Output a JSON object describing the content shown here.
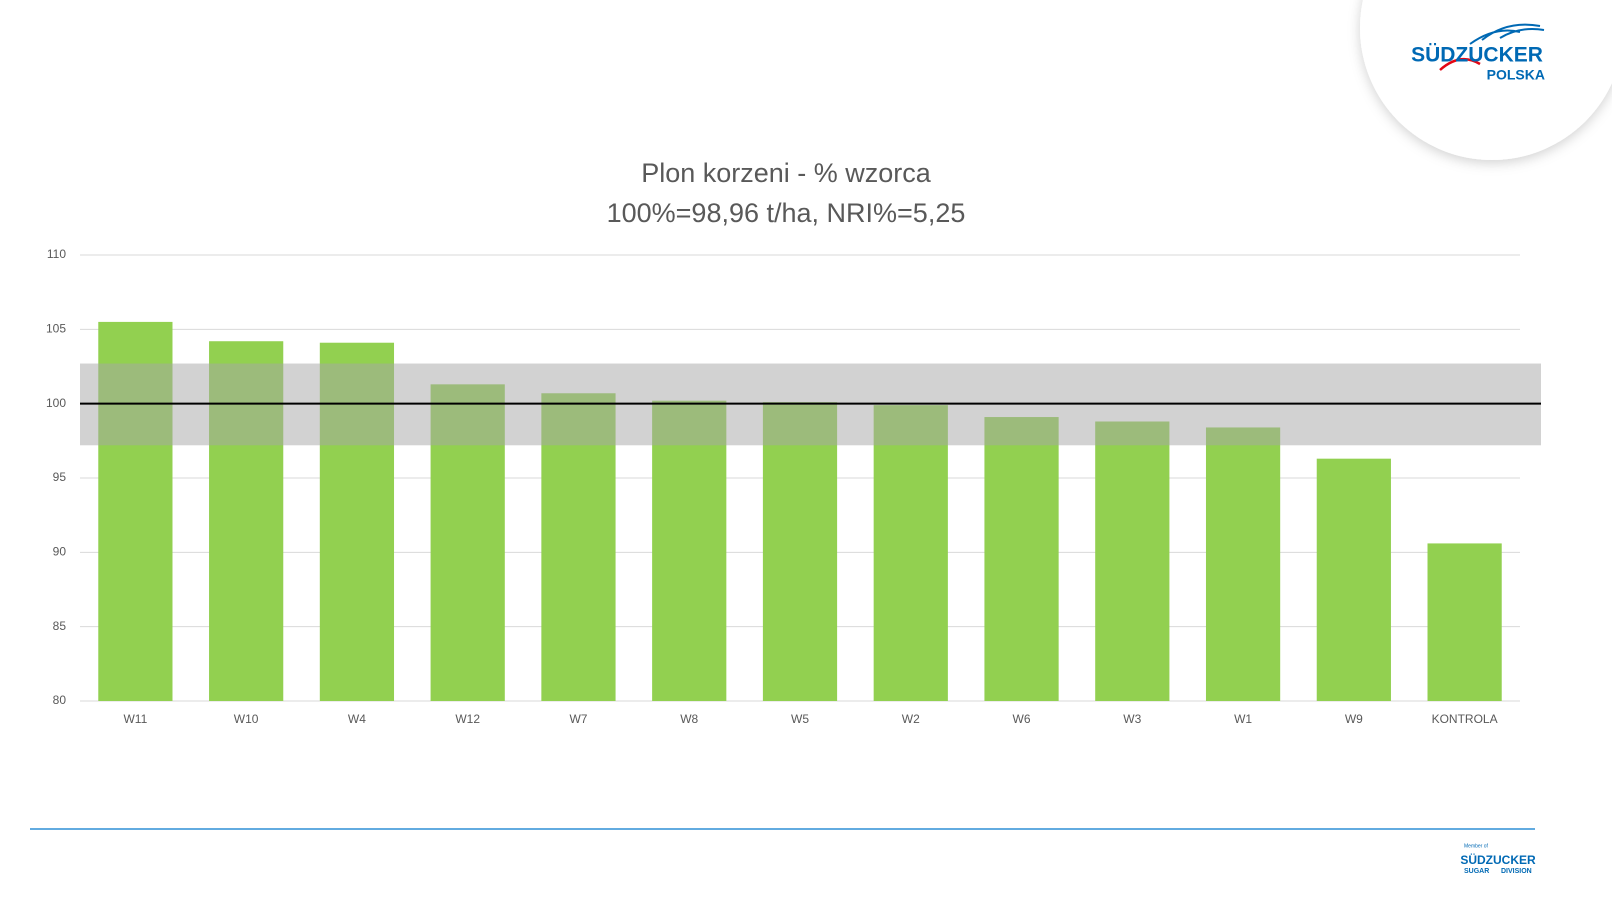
{
  "chart_data": {
    "type": "bar",
    "title": "Plon korzeni - % wzorca",
    "subtitle": "100%=98,96 t/ha, NRI%=5,25",
    "categories": [
      "W11",
      "W10",
      "W4",
      "W12",
      "W7",
      "W8",
      "W5",
      "W2",
      "W6",
      "W3",
      "W1",
      "W9",
      "KONTROLA"
    ],
    "values": [
      105.5,
      104.2,
      104.1,
      101.3,
      100.7,
      100.2,
      100.1,
      99.9,
      99.1,
      98.8,
      98.4,
      96.3,
      90.6
    ],
    "color": "#92d050",
    "ylim": [
      80,
      110
    ],
    "yticks": [
      80,
      85,
      90,
      95,
      100,
      105,
      110
    ],
    "grid": true,
    "reference_line": 100,
    "reference_band": [
      97.2,
      102.7
    ]
  },
  "logo": {
    "name": "SÜDZUCKER",
    "region": "POLSKA"
  },
  "footer_logo": {
    "member": "Member of",
    "name": "SÜDZUCKER",
    "division_1": "SUGAR",
    "division_2": "DIVISION"
  }
}
